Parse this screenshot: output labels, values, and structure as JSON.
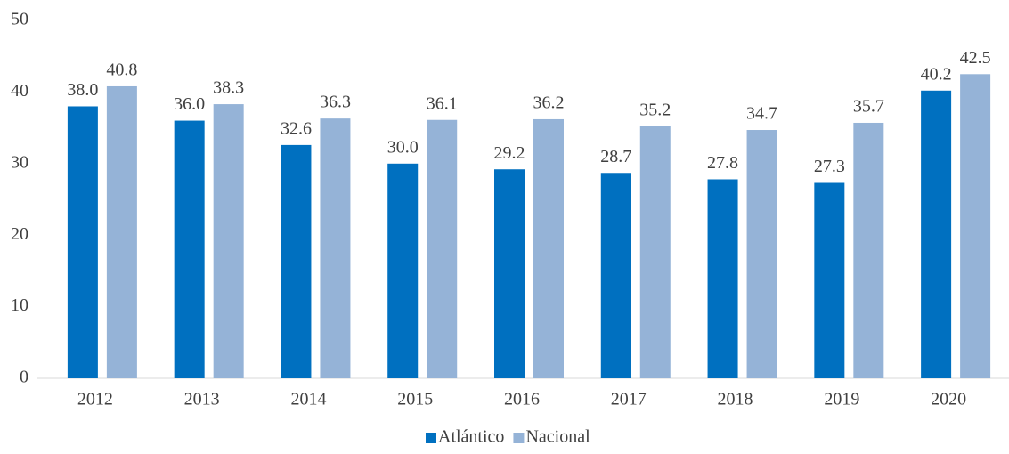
{
  "chart_data": {
    "type": "bar",
    "categories": [
      "2012",
      "2013",
      "2014",
      "2015",
      "2016",
      "2017",
      "2018",
      "2019",
      "2020"
    ],
    "series": [
      {
        "name": "Atlántico",
        "color": "#0070c0",
        "values": [
          38.0,
          36.0,
          32.6,
          30.0,
          29.2,
          28.7,
          27.8,
          27.3,
          40.2
        ],
        "value_labels": [
          "38.0",
          "36.0",
          "32.6",
          "30.0",
          "29.2",
          "28.7",
          "27.8",
          "27.3",
          "40.2"
        ]
      },
      {
        "name": "Nacional",
        "color": "#95b3d7",
        "values": [
          40.8,
          38.3,
          36.3,
          36.1,
          36.2,
          35.2,
          34.7,
          35.7,
          42.5
        ],
        "value_labels": [
          "40.8",
          "38.3",
          "36.3",
          "36.1",
          "36.2",
          "35.2",
          "34.7",
          "35.7",
          "42.5"
        ]
      }
    ],
    "ylim": [
      0,
      50
    ],
    "yticks": [
      0,
      10,
      20,
      30,
      40,
      50
    ],
    "grid": false,
    "legend": "bottom"
  }
}
